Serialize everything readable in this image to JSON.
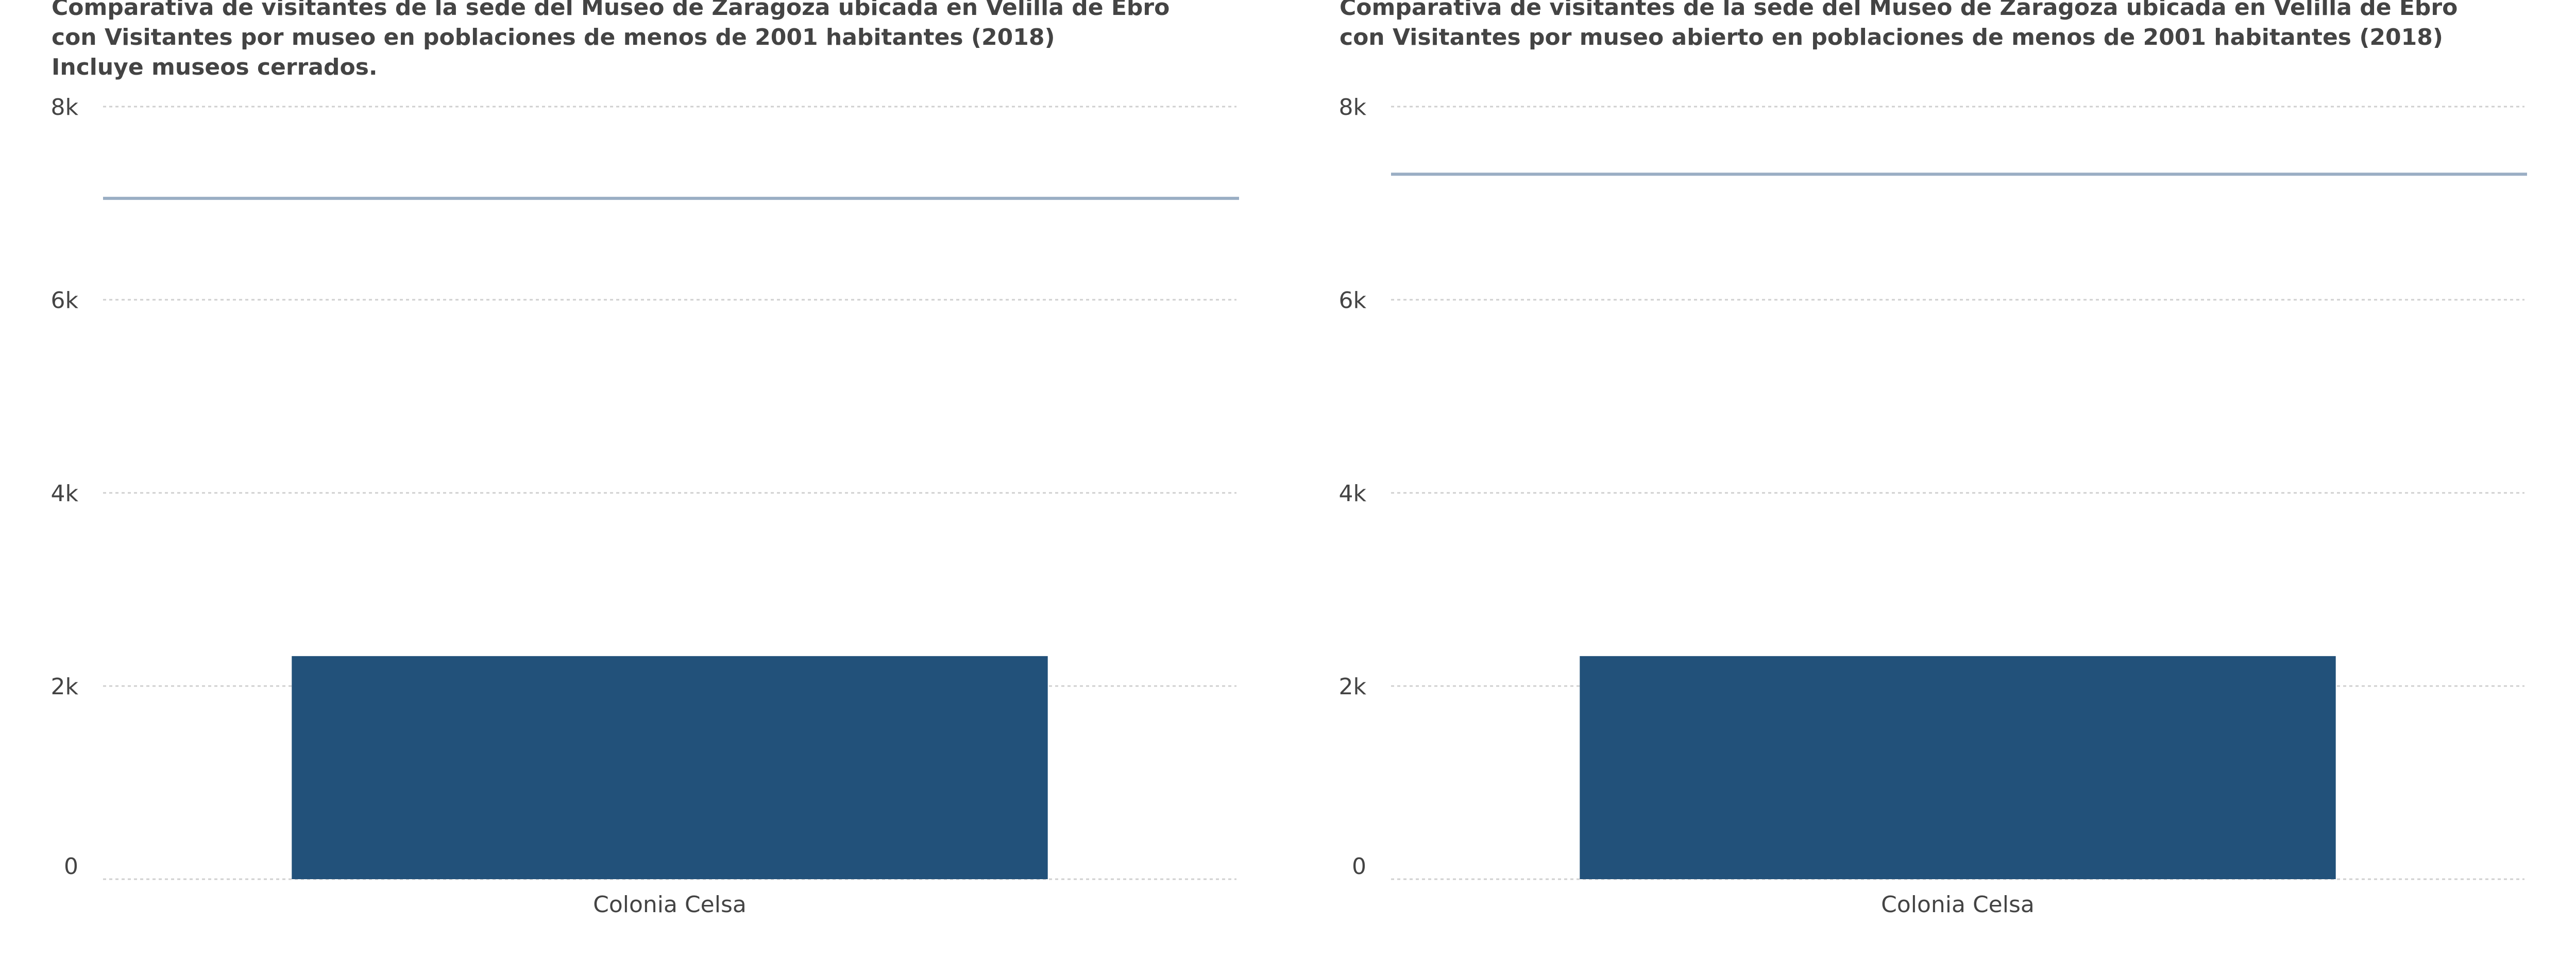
{
  "chart_data": [
    {
      "type": "bar",
      "title_lines": [
        "Comparativa de visitantes de la sede del Museo de Zaragoza ubicada en Velilla de Ebro",
        "con Visitantes por museo en poblaciones de menos de 2001 habitantes (2018)",
        "Incluye museos cerrados."
      ],
      "categories": [
        "Colonia Celsa"
      ],
      "values": [
        2310
      ],
      "reference_line": 7050,
      "ylim": [
        0,
        8000
      ],
      "yticks": [
        0,
        2000,
        4000,
        6000,
        8000
      ],
      "ytick_labels": [
        "0",
        "2k",
        "4k",
        "6k",
        "8k"
      ],
      "grid": true,
      "colors": {
        "bar": "#22517a",
        "reference_line": "#9aaec4",
        "grid": "#d0d0d0"
      }
    },
    {
      "type": "bar",
      "title_lines": [
        "Comparativa de visitantes de la sede del Museo de Zaragoza ubicada en Velilla de Ebro",
        "con Visitantes por museo abierto en poblaciones de menos de 2001 habitantes (2018)"
      ],
      "categories": [
        "Colonia Celsa"
      ],
      "values": [
        2310
      ],
      "reference_line": 7300,
      "ylim": [
        0,
        8000
      ],
      "yticks": [
        0,
        2000,
        4000,
        6000,
        8000
      ],
      "ytick_labels": [
        "0",
        "2k",
        "4k",
        "6k",
        "8k"
      ],
      "grid": true,
      "colors": {
        "bar": "#22517a",
        "reference_line": "#9aaec4",
        "grid": "#d0d0d0"
      }
    }
  ]
}
